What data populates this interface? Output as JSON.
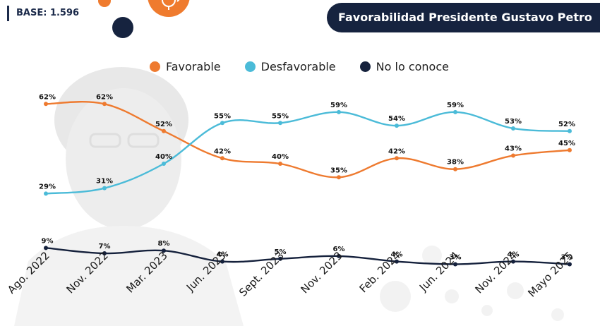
{
  "header": {
    "base_label": "BASE: 1.596",
    "title": "Favorabilidad Presidente Gustavo Petro"
  },
  "colors": {
    "favorable": "#ee7a2f",
    "desfavorable": "#4bbbd8",
    "no_lo_conoce": "#15213c",
    "navy": "#16233f",
    "orange_accent": "#ef7b2e"
  },
  "chart_data": {
    "type": "line",
    "categories": [
      "Ago. 2022",
      "Nov. 2022",
      "Mar. 2023",
      "Jun. 2023",
      "Sept. 2023",
      "Nov. 2023",
      "Feb. 2024",
      "Jun. 2024",
      "Nov. 2024",
      "Mayo 2025"
    ],
    "series": [
      {
        "name": "Favorable",
        "values": [
          62,
          62,
          52,
          42,
          40,
          35,
          42,
          38,
          43,
          45
        ]
      },
      {
        "name": "Desfavorable",
        "values": [
          29,
          31,
          40,
          55,
          55,
          59,
          54,
          59,
          53,
          52
        ]
      },
      {
        "name": "No lo conoce",
        "values": [
          9,
          7,
          8,
          4,
          5,
          6,
          4,
          3,
          4,
          3
        ]
      }
    ],
    "value_suffix": "%",
    "legend_position": "top",
    "grid": false
  }
}
